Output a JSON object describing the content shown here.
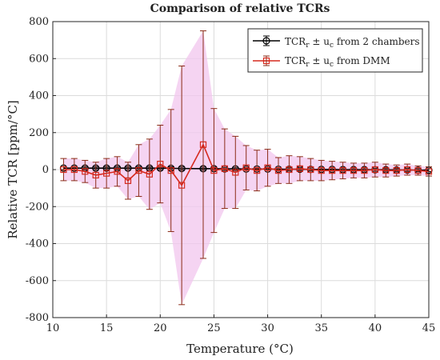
{
  "chart_data": {
    "type": "line",
    "title": "Comparison of relative TCRs",
    "xlabel": "Temperature (°C)",
    "ylabel": "Relative TCR [ppm/°C]",
    "xlim": [
      10,
      45
    ],
    "ylim": [
      -800,
      800
    ],
    "xticks": [
      10,
      15,
      20,
      25,
      30,
      35,
      40,
      45
    ],
    "yticks": [
      -800,
      -600,
      -400,
      -200,
      0,
      200,
      400,
      600,
      800
    ],
    "grid": true,
    "legend_position": "top-right",
    "x": [
      11,
      12,
      13,
      14,
      15,
      16,
      17,
      18,
      19,
      20,
      21,
      22,
      24,
      25,
      26,
      27,
      28,
      29,
      30,
      31,
      32,
      33,
      34,
      35,
      36,
      37,
      38,
      39,
      40,
      41,
      42,
      43,
      44,
      45
    ],
    "series": [
      {
        "name": "TCR_r ± u_c from 2 chambers",
        "legend_main": "TCR",
        "legend_sub1": "r",
        "legend_mid": " ± u",
        "legend_sub2": "c",
        "legend_tail": " from 2 chambers",
        "color": "#000000",
        "marker": "circle",
        "values": [
          8,
          8,
          8,
          8,
          8,
          8,
          8,
          8,
          8,
          8,
          7,
          6,
          5,
          5,
          4,
          4,
          3,
          3,
          3,
          2,
          2,
          2,
          1,
          1,
          1,
          0,
          0,
          0,
          -1,
          -1,
          -2,
          -2,
          -3,
          -3
        ],
        "errors": [
          8,
          8,
          8,
          8,
          8,
          8,
          8,
          8,
          8,
          8,
          8,
          8,
          8,
          8,
          8,
          8,
          8,
          8,
          8,
          8,
          8,
          8,
          8,
          8,
          8,
          8,
          8,
          8,
          8,
          8,
          8,
          8,
          8,
          8
        ]
      },
      {
        "name": "TCR_r ± u_c from DMM",
        "legend_main": "TCR",
        "legend_sub1": "r",
        "legend_mid": " ± u",
        "legend_sub2": "c",
        "legend_tail": " from DMM",
        "color": "#d62a1e",
        "err_color": "#8b2d18",
        "band_color": "#f2c5ee",
        "marker": "square",
        "values": [
          0,
          0,
          -10,
          -30,
          -20,
          -10,
          -60,
          -5,
          -25,
          30,
          -5,
          -85,
          135,
          -5,
          5,
          -15,
          10,
          -5,
          10,
          -5,
          0,
          5,
          0,
          -5,
          -5,
          -5,
          -5,
          -5,
          0,
          -5,
          -5,
          0,
          -5,
          -10
        ],
        "errors": [
          60,
          60,
          60,
          70,
          80,
          80,
          100,
          140,
          190,
          210,
          330,
          645,
          615,
          335,
          215,
          195,
          120,
          110,
          100,
          70,
          75,
          65,
          60,
          55,
          50,
          45,
          40,
          40,
          40,
          35,
          30,
          30,
          25,
          25
        ]
      }
    ]
  }
}
